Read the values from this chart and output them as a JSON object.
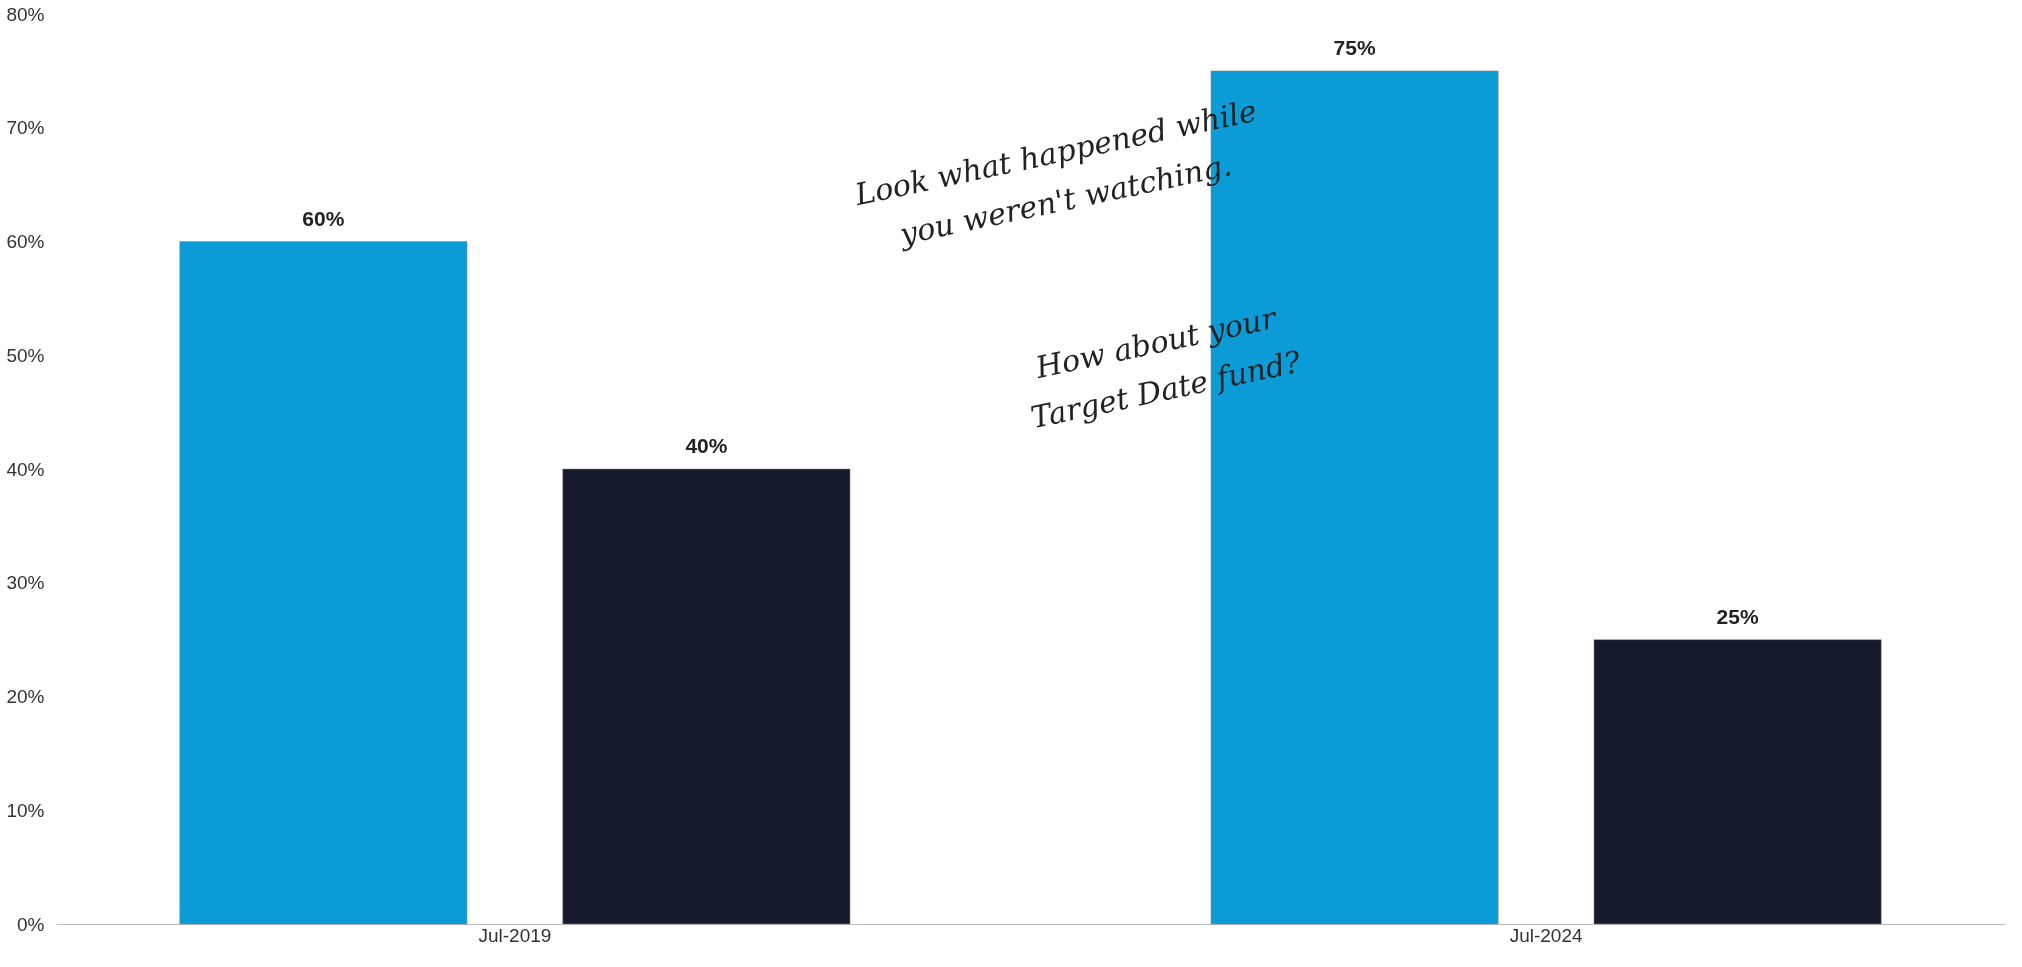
{
  "chart_data": {
    "type": "bar",
    "categories": [
      "Jul-2019",
      "Jul-2024"
    ],
    "series": [
      {
        "color": "#0b9bd7",
        "values": [
          60,
          75
        ],
        "value_labels": [
          "60%",
          "75%"
        ]
      },
      {
        "color": "#151b2c",
        "values": [
          40,
          25
        ],
        "value_labels": [
          "40%",
          "25%"
        ]
      }
    ],
    "ylim": [
      0,
      80
    ],
    "yticks": [
      {
        "value": 0,
        "label": "0%"
      },
      {
        "value": 10,
        "label": "10%"
      },
      {
        "value": 20,
        "label": "20%"
      },
      {
        "value": 30,
        "label": "30%"
      },
      {
        "value": 40,
        "label": "40%"
      },
      {
        "value": 50,
        "label": "50%"
      },
      {
        "value": 60,
        "label": "60%"
      },
      {
        "value": 70,
        "label": "70%"
      },
      {
        "value": 80,
        "label": "80%"
      }
    ],
    "grid": false,
    "annotations": [
      "Look what happened while you weren't watching.",
      "How about your Target Date fund?"
    ]
  }
}
